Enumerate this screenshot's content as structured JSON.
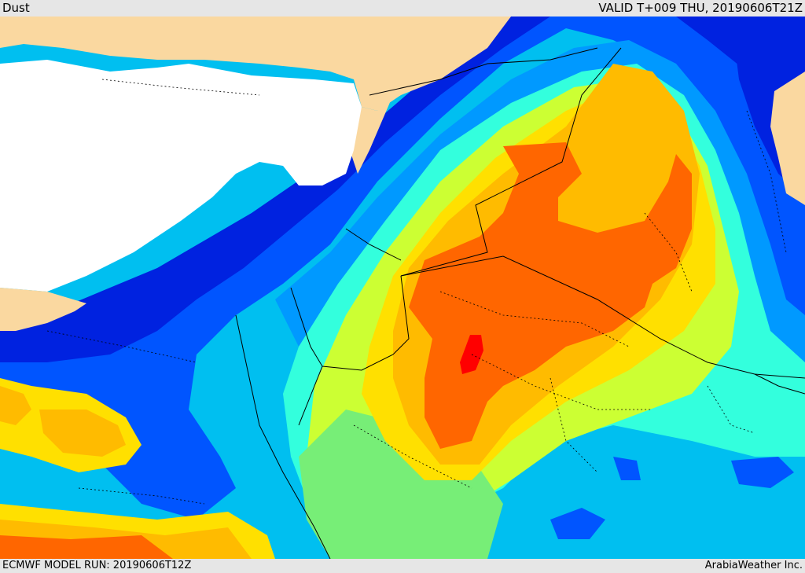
{
  "header": {
    "layer_title": "Dust",
    "valid_time": "VALID T+009 THU, 20190606T21Z"
  },
  "footer": {
    "model_run": "ECMWF MODEL RUN: 20190606T12Z",
    "credit": "ArabiaWeather Inc."
  },
  "map": {
    "region": "Eastern Mediterranean and Middle East",
    "field": "Dust",
    "colors": {
      "land_no_data": "#fad8a0",
      "sea_no_data": "#ffffff",
      "dark_blue": "#0022e0",
      "blue": "#0055ff",
      "light_blue": "#0099ff",
      "cyan": "#00bff0",
      "aqua": "#33ffdd",
      "green": "#77ee77",
      "yellow_green": "#ccff33",
      "yellow": "#ffe000",
      "orange": "#ffbb00",
      "dark_orange": "#ff6600",
      "red": "#ff0000",
      "borders": "#000000"
    }
  }
}
